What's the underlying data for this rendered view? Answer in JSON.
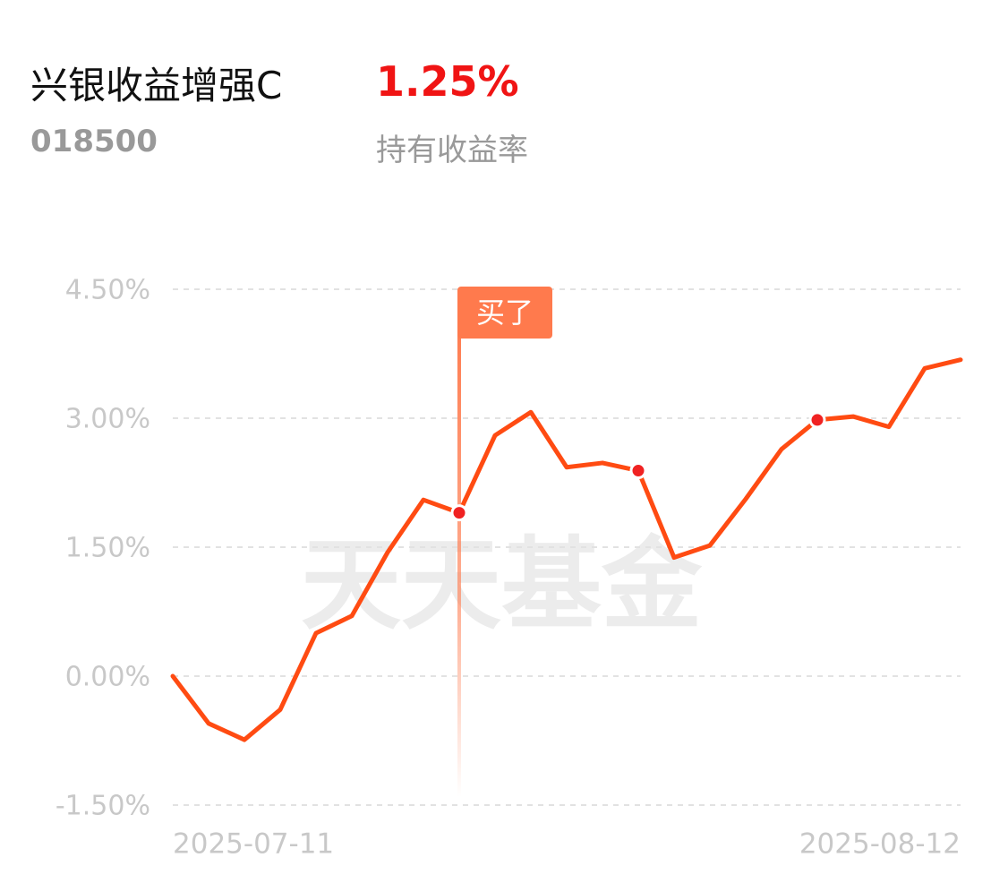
{
  "header": {
    "title": "兴银收益增强C",
    "code": "018500",
    "holding_return": "1.25%",
    "holding_return_label": "持有收益率"
  },
  "chart_data": {
    "type": "line",
    "watermark": "天天基金",
    "categories": [
      "2025-07-11",
      null,
      null,
      null,
      null,
      null,
      null,
      null,
      null,
      null,
      null,
      null,
      null,
      null,
      null,
      null,
      null,
      null,
      null,
      null,
      null,
      null,
      "2025-08-12"
    ],
    "series": [
      {
        "color": "#ff4b12",
        "values": [
          0.0,
          -0.55,
          -0.74,
          -0.39,
          0.5,
          0.7,
          1.44,
          2.05,
          1.9,
          2.8,
          3.07,
          2.43,
          2.48,
          2.39,
          1.38,
          1.52,
          2.06,
          2.64,
          2.98,
          3.02,
          2.9,
          3.58,
          3.68
        ]
      }
    ],
    "highlight_points": [
      8,
      13,
      18
    ],
    "annotation": {
      "text": "买了",
      "at": 8
    },
    "ylim": [
      -1.5,
      4.5
    ],
    "yticks": [
      {
        "value": 4.5,
        "label": "4.50%"
      },
      {
        "value": 3.0,
        "label": "3.00%"
      },
      {
        "value": 1.5,
        "label": "1.50%"
      },
      {
        "value": 0.0,
        "label": "0.00%"
      },
      {
        "value": -1.5,
        "label": "-1.50%"
      }
    ],
    "grid": true
  }
}
